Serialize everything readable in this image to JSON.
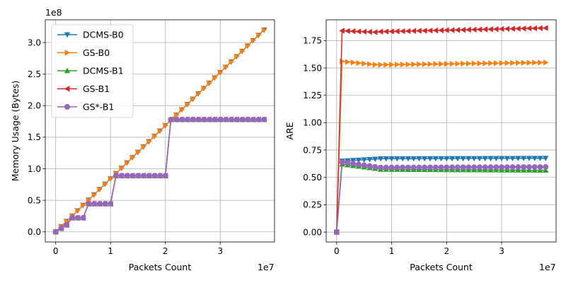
{
  "chart_data": [
    {
      "type": "line",
      "title": "",
      "xlabel": "Packets Count",
      "ylabel": "Memory Usage (Bytes)",
      "x_multiplier": "1e7",
      "y_multiplier": "1e8",
      "xlim": [
        -0.19,
        3.99
      ],
      "ylim": [
        -0.16,
        3.36
      ],
      "xticks": [
        0,
        1,
        2,
        3
      ],
      "xtick_labels": [
        "0",
        "1",
        "2",
        "3"
      ],
      "yticks": [
        0,
        0.5,
        1.0,
        1.5,
        2.0,
        2.5,
        3.0
      ],
      "ytick_labels": [
        "0.0",
        "0.5",
        "1.0",
        "1.5",
        "2.0",
        "2.5",
        "3.0"
      ],
      "grid": true,
      "legend": "upper left",
      "series": [
        {
          "name": "DCMS-B0",
          "color": "#1f77b4",
          "marker": "triangle-down",
          "pattern": "linear",
          "y_end": 3.2
        },
        {
          "name": "GS-B0",
          "color": "#ff7f0e",
          "marker": "triangle-right",
          "pattern": "linear",
          "y_end": 3.2
        },
        {
          "name": "DCMS-B1",
          "color": "#2ca02c",
          "marker": "triangle-up",
          "pattern": "step",
          "steps": [
            0.222,
            0.445,
            0.89,
            1.78
          ]
        },
        {
          "name": "GS-B1",
          "color": "#d62728",
          "marker": "triangle-left",
          "pattern": "step",
          "steps": [
            0.222,
            0.445,
            0.89,
            1.78
          ]
        },
        {
          "name": "GS*-B1",
          "color": "#9467bd",
          "marker": "circle",
          "pattern": "step",
          "steps": [
            0.222,
            0.445,
            0.89,
            1.78
          ]
        }
      ]
    },
    {
      "type": "line",
      "title": "",
      "xlabel": "Packets Count",
      "ylabel": "ARE",
      "x_multiplier": "1e7",
      "xlim": [
        -0.19,
        3.99
      ],
      "ylim": [
        -0.09,
        1.94
      ],
      "xticks": [
        0,
        1,
        2,
        3
      ],
      "xtick_labels": [
        "0",
        "1",
        "2",
        "3"
      ],
      "yticks": [
        0,
        0.25,
        0.5,
        0.75,
        1.0,
        1.25,
        1.5,
        1.75
      ],
      "ytick_labels": [
        "0.00",
        "0.25",
        "0.50",
        "0.75",
        "1.00",
        "1.25",
        "1.50",
        "1.75"
      ],
      "grid": true,
      "series": [
        {
          "name": "DCMS-B0",
          "color": "#1f77b4",
          "marker": "triangle-down",
          "first": 0.65,
          "steady": 0.67,
          "end": 0.675
        },
        {
          "name": "GS-B0",
          "color": "#ff7f0e",
          "marker": "triangle-right",
          "first": 1.56,
          "steady": 1.525,
          "end": 1.55
        },
        {
          "name": "DCMS-B1",
          "color": "#2ca02c",
          "marker": "triangle-up",
          "first": 0.62,
          "steady": 0.575,
          "end": 0.565
        },
        {
          "name": "GS-B1",
          "color": "#d62728",
          "marker": "triangle-left",
          "first": 1.84,
          "steady": 1.825,
          "end": 1.865
        },
        {
          "name": "GS*-B1",
          "color": "#9467bd",
          "marker": "circle",
          "first": 0.64,
          "steady": 0.59,
          "end": 0.595
        }
      ]
    }
  ]
}
